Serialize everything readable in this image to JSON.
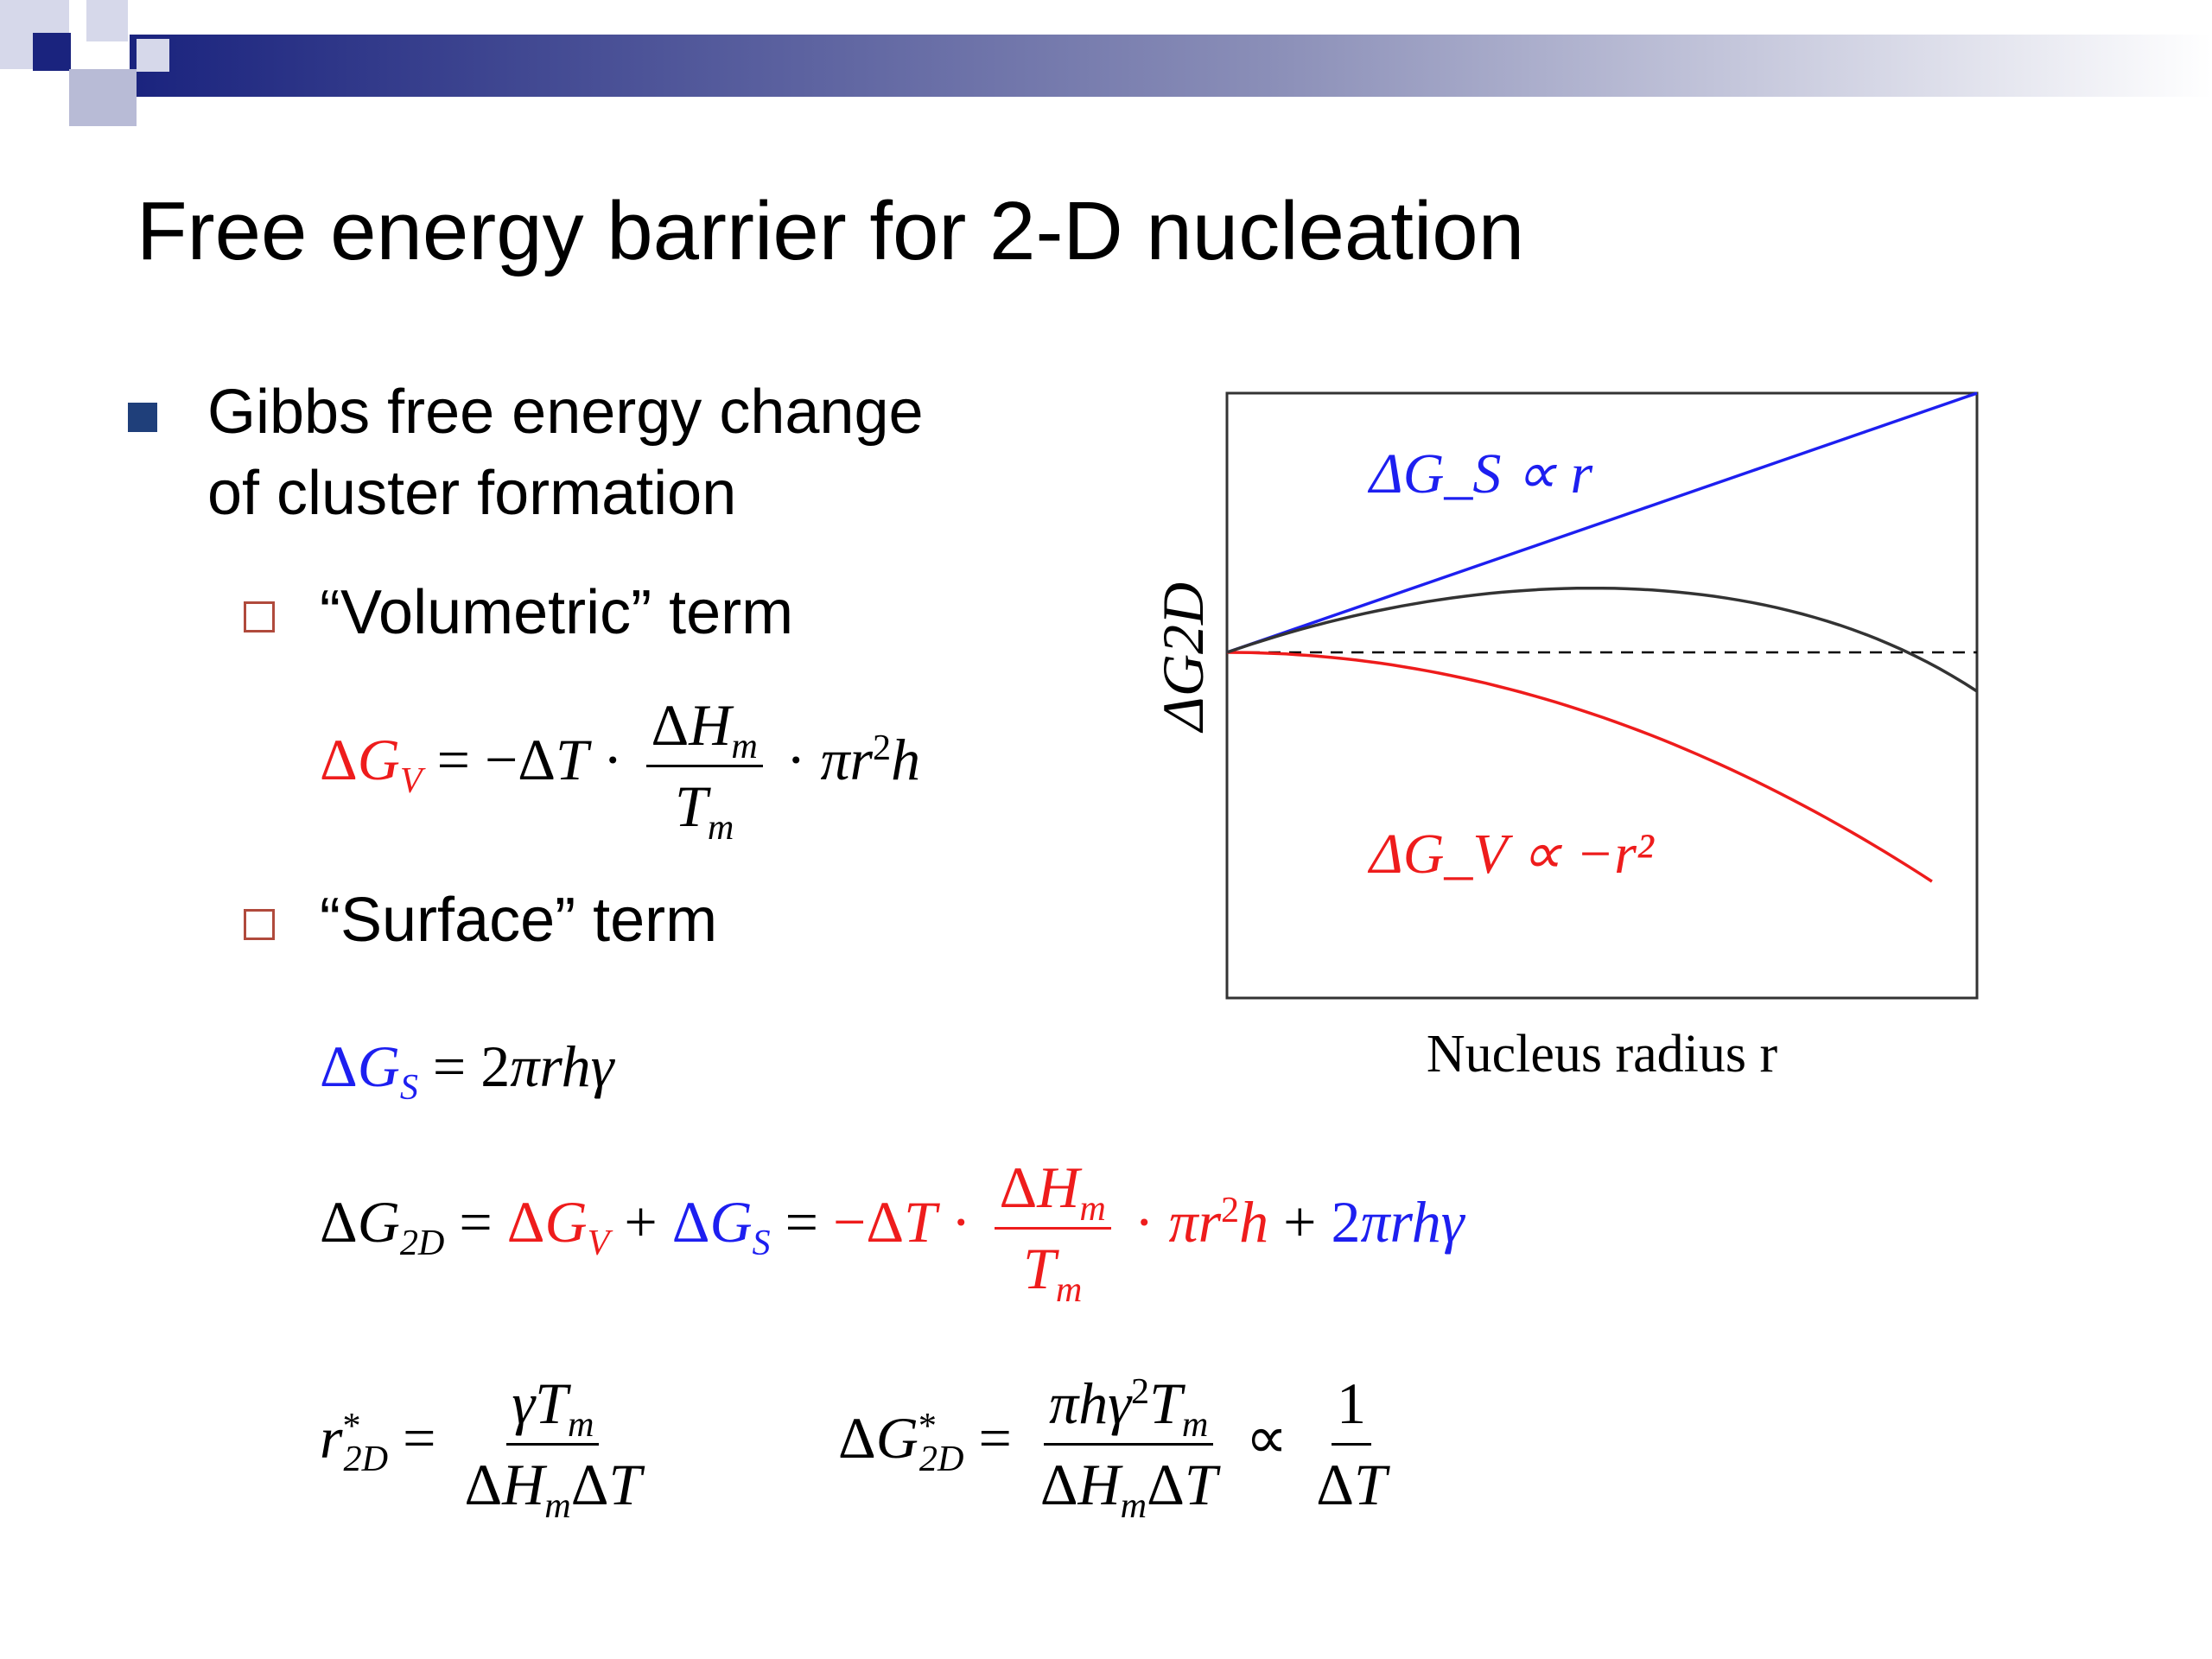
{
  "slide": {
    "title": "Free energy barrier for 2-D nucleation",
    "bullet": {
      "text_line1": "Gibbs free energy change",
      "text_line2": "of cluster formation"
    },
    "sub_bullets": [
      {
        "label": "“Volumetric” term"
      },
      {
        "label": "“Surface” term"
      }
    ],
    "colors": {
      "volumetric": "#ee1c1c",
      "surface": "#1d1ff0",
      "combined": "#333333",
      "header_dark": "#1a237e",
      "bullet": "#1f3f7a",
      "sub_bullet_box": "#b04a3c"
    },
    "equations": {
      "volumetric": "ΔG_V = −ΔT · ΔH_m / T_m · π r² h",
      "surface": "ΔG_S = 2π r h γ",
      "total": "ΔG_2D = ΔG_V + ΔG_S = −ΔT · ΔH_m / T_m · π r² h + 2π r h γ",
      "critical_radius": "r*_2D = γ T_m / (ΔH_m ΔT)",
      "critical_energy": "ΔG*_2D = π h γ² T_m / (ΔH_m ΔT) ∝ 1 / ΔT"
    }
  },
  "chart_data": {
    "type": "line",
    "xlabel": "Nucleus radius r",
    "ylabel": "ΔG2D",
    "grid": false,
    "reference_line": {
      "style": "dashed",
      "y": 0
    },
    "series": [
      {
        "name": "ΔG_S ∝ r",
        "relation": "linear",
        "color": "#1d1ff0",
        "x": [
          0,
          0.25,
          0.5,
          0.75,
          1.0
        ],
        "y": [
          0,
          0.25,
          0.5,
          0.75,
          1.0
        ]
      },
      {
        "name": "ΔG_V ∝ −r²",
        "relation": "quadratic",
        "color": "#ee1c1c",
        "x": [
          0,
          0.25,
          0.5,
          0.75,
          0.94
        ],
        "y": [
          0,
          -0.0625,
          -0.25,
          -0.5625,
          -0.88
        ]
      },
      {
        "name": "",
        "relation": "sum",
        "color": "#333333",
        "x": [
          0,
          0.25,
          0.5,
          0.75,
          1.0
        ],
        "y": [
          0,
          0.1875,
          0.25,
          0.1875,
          -0.15
        ]
      }
    ],
    "annotations": [
      "ΔG_S ∝ r",
      "ΔG_V ∝ −r²"
    ]
  }
}
